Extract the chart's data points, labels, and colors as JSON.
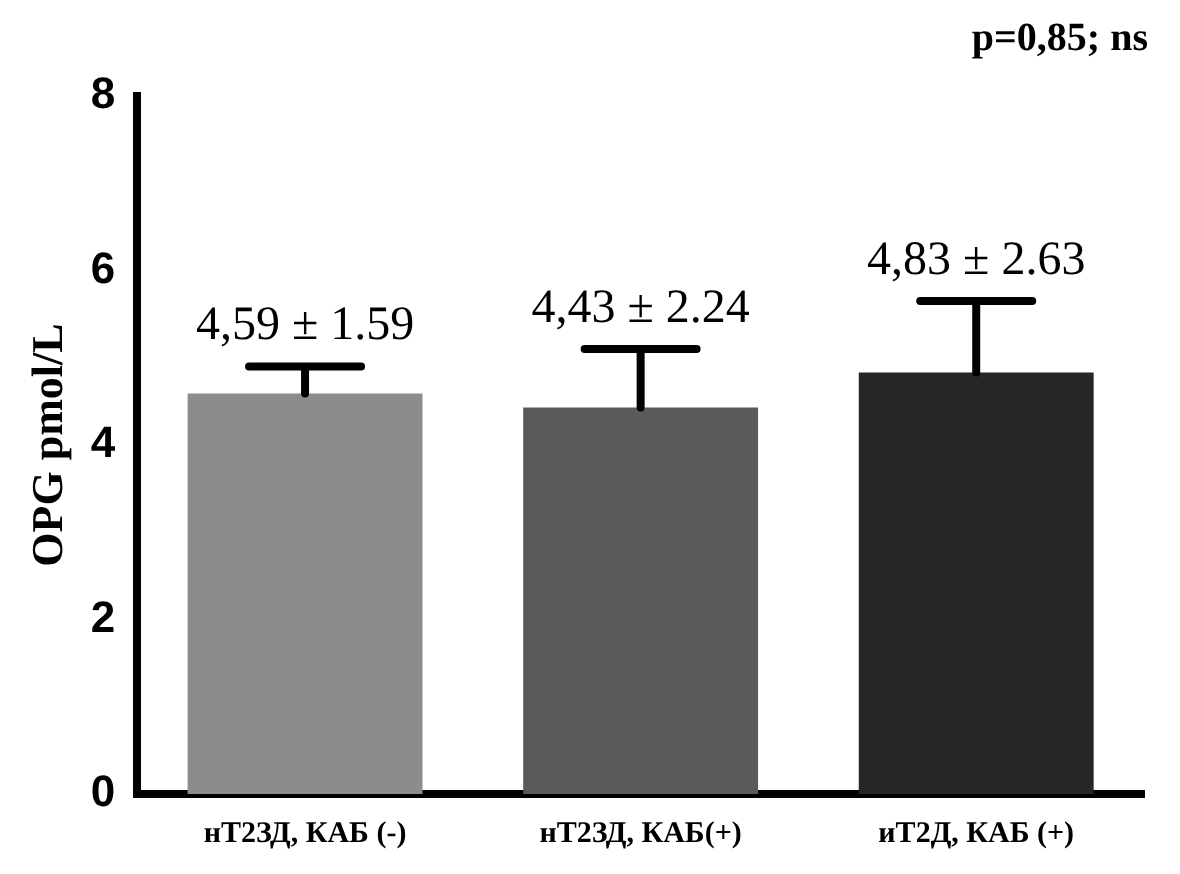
{
  "chart_data": {
    "type": "bar",
    "annotations": [
      "p=0,85; ns"
    ],
    "ylabel": "OPG pmol/L",
    "categories": [
      "нТ2ЗД, КАБ (-)",
      "нТ2ЗД, КАБ(+)",
      "иТ2Д, КАБ (+)"
    ],
    "values": [
      4.59,
      4.43,
      4.83
    ],
    "errors": [
      [
        4.59,
        4.9
      ],
      [
        4.43,
        5.1
      ],
      [
        4.83,
        5.65
      ]
    ],
    "value_labels": [
      "4,59 ± 1.59",
      "4,43 ± 2.24",
      "4,83 ± 2.63"
    ],
    "colors": [
      "#8c8c8c",
      "#5a5a5a",
      "#262626"
    ],
    "ylim": [
      0,
      8
    ],
    "yticks": [
      0,
      2,
      4,
      6,
      8
    ],
    "grid": false,
    "legend": false
  }
}
